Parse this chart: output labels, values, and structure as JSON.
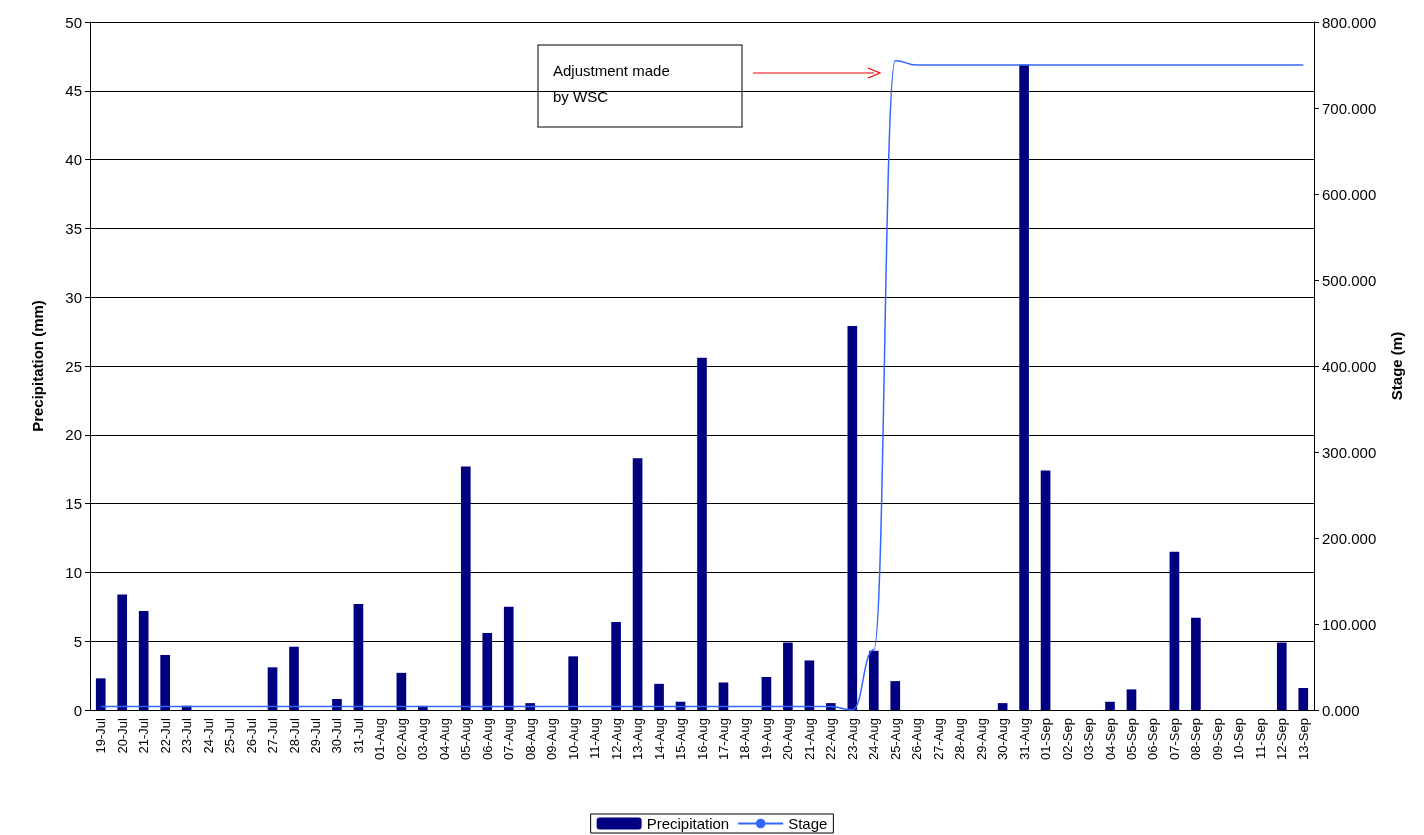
{
  "chart_data": {
    "type": "bar",
    "ylabel": "Precipitation (mm)",
    "y2label": "Stage (m)",
    "categories": [
      "19-Jul",
      "20-Jul",
      "21-Jul",
      "22-Jul",
      "23-Jul",
      "24-Jul",
      "25-Jul",
      "26-Jul",
      "27-Jul",
      "28-Jul",
      "29-Jul",
      "30-Jul",
      "31-Jul",
      "01-Aug",
      "02-Aug",
      "03-Aug",
      "04-Aug",
      "05-Aug",
      "06-Aug",
      "07-Aug",
      "08-Aug",
      "09-Aug",
      "10-Aug",
      "11-Aug",
      "12-Aug",
      "13-Aug",
      "14-Aug",
      "15-Aug",
      "16-Aug",
      "17-Aug",
      "18-Aug",
      "19-Aug",
      "20-Aug",
      "21-Aug",
      "22-Aug",
      "23-Aug",
      "24-Aug",
      "25-Aug",
      "26-Aug",
      "27-Aug",
      "28-Aug",
      "29-Aug",
      "30-Aug",
      "31-Aug",
      "01-Sep",
      "02-Sep",
      "03-Sep",
      "04-Sep",
      "05-Sep",
      "06-Sep",
      "07-Sep",
      "08-Sep",
      "09-Sep",
      "10-Sep",
      "11-Sep",
      "12-Sep",
      "13-Sep"
    ],
    "series": [
      {
        "name": "Precipitation",
        "color": "#000080",
        "values": [
          2.3,
          8.4,
          7.2,
          4.0,
          0.3,
          0,
          0,
          0,
          3.1,
          4.6,
          0,
          0.8,
          7.7,
          0,
          2.7,
          0.3,
          0,
          17.7,
          5.6,
          7.5,
          0.5,
          0,
          3.9,
          0,
          6.4,
          18.3,
          1.9,
          0.6,
          25.6,
          2.0,
          0,
          2.4,
          4.9,
          3.6,
          0.5,
          27.9,
          4.3,
          2.1,
          0,
          0,
          0,
          0,
          0.5,
          46.9,
          17.4,
          0,
          0,
          0.6,
          1.5,
          0,
          11.5,
          6.7,
          0,
          0,
          0,
          4.9,
          1.6
        ]
      },
      {
        "name": "Stage",
        "type": "line",
        "axis": "y2",
        "color": "#3366ff",
        "values": [
          4,
          4,
          4,
          4,
          4,
          4,
          4,
          4,
          4,
          4,
          4,
          4,
          4,
          4,
          4,
          4,
          4,
          4,
          4,
          4,
          4,
          4,
          4,
          4,
          4,
          4,
          4,
          4,
          4,
          4,
          4,
          4,
          4,
          4,
          4,
          0,
          70,
          755,
          750,
          750,
          750,
          750,
          750,
          750,
          750,
          750,
          750,
          750,
          750,
          750,
          750,
          750,
          750,
          750,
          750,
          750,
          750
        ]
      }
    ],
    "ylim": [
      0,
      50
    ],
    "yticks": [
      0,
      5,
      10,
      15,
      20,
      25,
      30,
      35,
      40,
      45,
      50
    ],
    "y2lim": [
      0,
      800
    ],
    "y2ticks": [
      {
        "value": 0,
        "label": "0.000"
      },
      {
        "value": 100,
        "label": "100.000"
      },
      {
        "value": 200,
        "label": "200.000"
      },
      {
        "value": 300,
        "label": "300.000"
      },
      {
        "value": 400,
        "label": "400.000"
      },
      {
        "value": 500,
        "label": "500.000"
      },
      {
        "value": 600,
        "label": "600.000"
      },
      {
        "value": 700,
        "label": "700.000"
      },
      {
        "value": 800,
        "label": "800.000"
      }
    ],
    "grid": "y",
    "legend": "bottom",
    "marker": "none",
    "annotations": [
      "Adjustment made\nby WSC"
    ]
  }
}
